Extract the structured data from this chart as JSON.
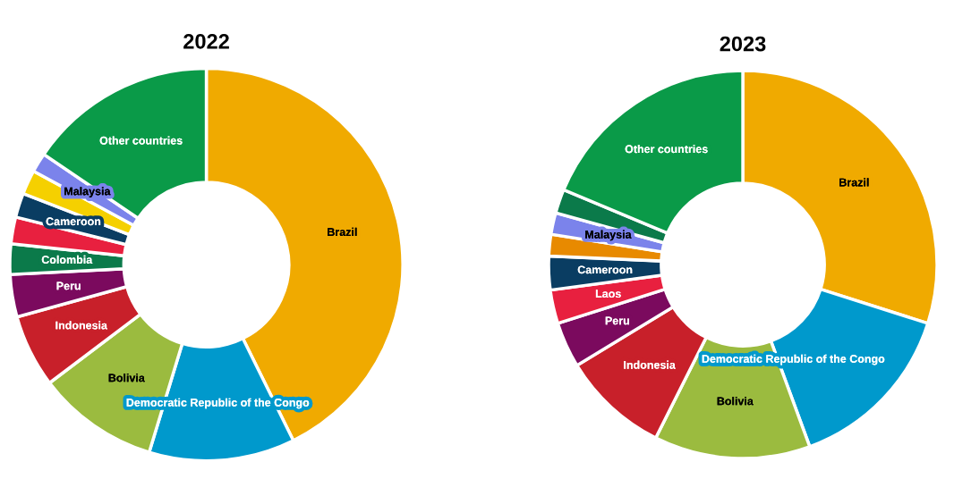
{
  "chart_data": [
    {
      "type": "donut",
      "title": "2022",
      "categories": [
        "Brazil",
        "Democratic Republic of the Congo",
        "Bolivia",
        "Indonesia",
        "Peru",
        "Colombia",
        null,
        "Cameroon",
        null,
        "Malaysia",
        "Other countries"
      ],
      "values": [
        42.7,
        12,
        10,
        6,
        3.5,
        2.5,
        2.2,
        2,
        2,
        1.6,
        15.5
      ],
      "colors": [
        "#f0aa00",
        "#0099cc",
        "#9bbb3f",
        "#c8202a",
        "#7b0a5e",
        "#0b7a4a",
        "#e8203f",
        "#0a3d62",
        "#f5d000",
        "#7b83eb",
        "#0a9a48"
      ]
    },
    {
      "type": "donut",
      "title": "2023",
      "categories": [
        "Brazil",
        "Democratic Republic of the Congo",
        "Bolivia",
        "Indonesia",
        "Peru",
        "Laos",
        "Cameroon",
        null,
        "Malaysia",
        null,
        "Other countries"
      ],
      "values": [
        29.9,
        14.5,
        13,
        8.9,
        3.8,
        2.8,
        2.8,
        1.8,
        1.8,
        2,
        18.7
      ],
      "colors": [
        "#f0aa00",
        "#0099cc",
        "#9bbb3f",
        "#c8202a",
        "#7b0a5e",
        "#e8203f",
        "#0a3d62",
        "#e88a00",
        "#7b83eb",
        "#0b7a4a",
        "#0a9a48"
      ]
    }
  ]
}
